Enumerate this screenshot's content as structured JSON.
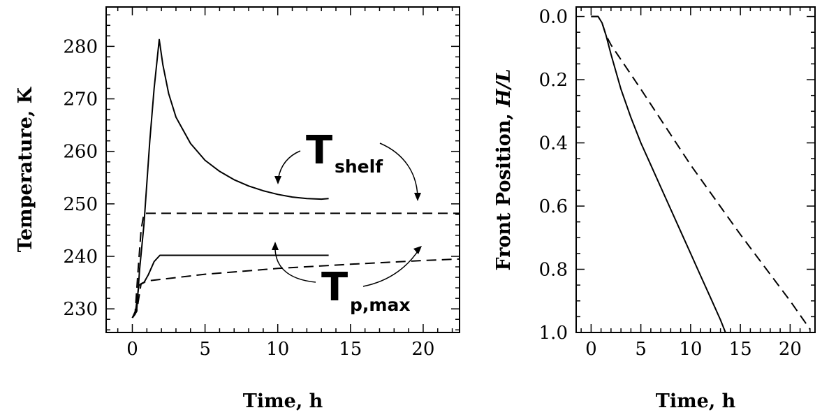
{
  "chart_data": [
    {
      "type": "line",
      "title": "",
      "xlabel": "Time, h",
      "ylabel": "Temperature, K",
      "xlim": [
        -1.8,
        22.5
      ],
      "ylim": [
        225.5,
        287.5
      ],
      "x_ticks": [
        0,
        5,
        10,
        15,
        20
      ],
      "x_tick_labels": [
        "0",
        "5",
        "10",
        "15",
        "20"
      ],
      "y_ticks": [
        230,
        240,
        250,
        260,
        270,
        280
      ],
      "y_tick_labels": [
        "230",
        "240",
        "250",
        "260",
        "270",
        "280"
      ],
      "grid": false,
      "legend": "none",
      "series": [
        {
          "style": "solid",
          "points": [
            [
              0,
              228.3
            ],
            [
              0.3,
              229.6
            ],
            [
              0.5,
              237.5
            ],
            [
              0.8,
              246
            ],
            [
              1.2,
              262
            ],
            [
              1.5,
              272
            ],
            [
              1.85,
              281.3
            ],
            [
              2.1,
              276.5
            ],
            [
              2.5,
              271
            ],
            [
              3,
              266.5
            ],
            [
              4,
              261.5
            ],
            [
              5,
              258.3
            ],
            [
              6,
              256.2
            ],
            [
              7,
              254.6
            ],
            [
              8,
              253.4
            ],
            [
              9,
              252.5
            ],
            [
              10,
              251.8
            ],
            [
              11,
              251.3
            ],
            [
              12,
              251
            ],
            [
              13,
              250.9
            ],
            [
              13.5,
              251
            ]
          ]
        },
        {
          "style": "dashed",
          "points": [
            [
              0,
              228.3
            ],
            [
              0.2,
              229.5
            ],
            [
              0.4,
              237.5
            ],
            [
              0.6,
              245
            ],
            [
              0.8,
              248.2
            ],
            [
              22.5,
              248.2
            ]
          ]
        },
        {
          "style": "solid",
          "points": [
            [
              0,
              228.3
            ],
            [
              0.2,
              229
            ],
            [
              0.45,
              234.5
            ],
            [
              0.8,
              235
            ],
            [
              1.1,
              236.5
            ],
            [
              1.5,
              239
            ],
            [
              1.9,
              240.2
            ],
            [
              13.5,
              240.2
            ]
          ]
        },
        {
          "style": "dashed",
          "points": [
            [
              0,
              228.3
            ],
            [
              0.3,
              229.5
            ],
            [
              0.6,
              234.8
            ],
            [
              1,
              235.3
            ],
            [
              5,
              236.6
            ],
            [
              10,
              237.7
            ],
            [
              15,
              238.5
            ],
            [
              20,
              239.2
            ],
            [
              22.5,
              239.5
            ]
          ]
        }
      ],
      "annotations": [
        {
          "text": "T",
          "subscript": "shelf"
        },
        {
          "text": "T",
          "subscript": "p,max"
        }
      ]
    },
    {
      "type": "line",
      "title": "",
      "xlabel": "Time, h",
      "ylabel": "Front Position, H/L",
      "ylabel_italic_part": "H/L",
      "xlim": [
        -1.5,
        22.5
      ],
      "ylim": [
        1.0,
        -0.03
      ],
      "y_inverted": true,
      "x_ticks": [
        0,
        5,
        10,
        15,
        20
      ],
      "x_tick_labels": [
        "0",
        "5",
        "10",
        "15",
        "20"
      ],
      "y_ticks": [
        0.0,
        0.2,
        0.4,
        0.6,
        0.8,
        1.0
      ],
      "y_tick_labels": [
        "0.0",
        "0.2",
        "0.4",
        "0.6",
        "0.8",
        "1.0"
      ],
      "grid": false,
      "legend": "none",
      "series": [
        {
          "style": "solid",
          "points": [
            [
              0,
              0
            ],
            [
              0.7,
              0.0
            ],
            [
              1.1,
              0.02
            ],
            [
              1.5,
              0.06
            ],
            [
              2,
              0.12
            ],
            [
              3,
              0.23
            ],
            [
              4,
              0.32
            ],
            [
              5,
              0.4
            ],
            [
              6,
              0.47
            ],
            [
              7,
              0.54
            ],
            [
              8,
              0.61
            ],
            [
              9,
              0.68
            ],
            [
              10,
              0.75
            ],
            [
              11,
              0.82
            ],
            [
              12,
              0.89
            ],
            [
              13,
              0.96
            ],
            [
              13.5,
              1.0
            ]
          ]
        },
        {
          "style": "dashed",
          "points": [
            [
              0,
              0
            ],
            [
              0.7,
              0.0
            ],
            [
              1.1,
              0.02
            ],
            [
              1.5,
              0.06
            ],
            [
              2,
              0.09
            ],
            [
              5,
              0.23
            ],
            [
              10,
              0.47
            ],
            [
              15,
              0.69
            ],
            [
              20,
              0.9
            ],
            [
              22,
              0.99
            ]
          ]
        }
      ]
    }
  ]
}
